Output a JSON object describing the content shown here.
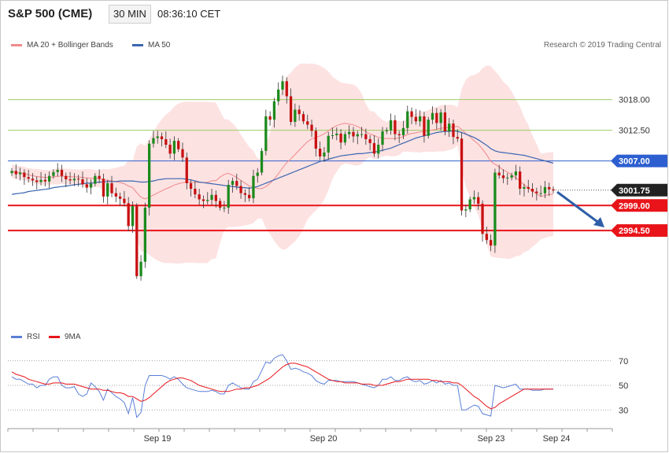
{
  "header": {
    "instrument": "S&P 500 (CME)",
    "timeframe": "30 MIN",
    "time": "08:36:10 CET"
  },
  "legend": {
    "ma20_label": "MA 20 + Bollinger Bands",
    "ma50_label": "MA 50",
    "rsi_label": "RSI",
    "rsi_ma_label": "9MA"
  },
  "credit": "Research © 2019 Trading Central",
  "colors": {
    "bull": "#1c8a1c",
    "bear": "#c81010",
    "band": "#fde2e2",
    "ma20": "#f08a8a",
    "ma50": "#3a66b0",
    "support": "#e8141a",
    "resistance_line": "#9ccc65",
    "pivot_line": "#2d5fd0",
    "last_price_tag": "#222222",
    "arrow": "#2e5ea8"
  },
  "chart_data": [
    {
      "type": "candlestick",
      "y_axis_range": [
        2978,
        3026
      ],
      "x_labels": [
        "Sep 19",
        "Sep 20",
        "Sep 23",
        "Sep 24"
      ],
      "levels": [
        {
          "value": 3018.0,
          "label": "3018.00",
          "kind": "resistance"
        },
        {
          "value": 3012.5,
          "label": "3012.50",
          "kind": "resistance"
        },
        {
          "value": 3007.0,
          "label": "3007.00",
          "kind": "pivot"
        },
        {
          "value": 3001.75,
          "label": "3001.75",
          "kind": "last"
        },
        {
          "value": 2999.0,
          "label": "2999.00",
          "kind": "support"
        },
        {
          "value": 2994.5,
          "label": "2994.50",
          "kind": "support"
        }
      ],
      "close": [
        3005.2,
        3004.6,
        3004.9,
        3004.1,
        3003.8,
        3003.5,
        3003.2,
        3003.6,
        3003.3,
        3004.3,
        3005.0,
        3005.4,
        3004.3,
        3003.7,
        3003.5,
        3003.8,
        3003.7,
        3002.8,
        3002.2,
        3002.9,
        3004.3,
        3003.8,
        3000.6,
        3003.0,
        3001.2,
        3000.6,
        3000.2,
        2999.4,
        2995.3,
        2998.9,
        2986.3,
        2988.9,
        2998.6,
        3010.1,
        3011.1,
        3011.4,
        3010.9,
        3009.9,
        3008.3,
        3010.6,
        3009.1,
        3007.6,
        3003.0,
        3002.0,
        3001.0,
        3000.1,
        2999.8,
        3000.0,
        3000.9,
        2999.8,
        2998.6,
        2998.6,
        3002.7,
        3003.4,
        3002.5,
        3001.2,
        3000.9,
        3000.3,
        3004.3,
        3004.9,
        3008.8,
        3015.0,
        3014.4,
        3017.7,
        3019.8,
        3021.3,
        3018.6,
        3014.0,
        3016.2,
        3015.4,
        3014.1,
        3013.5,
        3012.4,
        3009.2,
        3007.8,
        3008.5,
        3011.5,
        3011.6,
        3011.9,
        3010.3,
        3011.8,
        3012.2,
        3011.4,
        3011.8,
        3011.8,
        3010.9,
        3010.2,
        3008.3,
        3009.9,
        3012.3,
        3012.5,
        3014.3,
        3011.8,
        3011.6,
        3012.9,
        3015.9,
        3014.9,
        3014.1,
        3015.0,
        3011.5,
        3014.4,
        3015.6,
        3013.8,
        3015.7,
        3012.3,
        3013.7,
        3011.3,
        3011.0,
        2998.1,
        2998.3,
        3000.1,
        3000.5,
        2999.3,
        2993.9,
        2992.8,
        2991.8,
        3004.9,
        3004.4,
        3003.9,
        3004.0,
        3004.4,
        3005.1,
        3002.0,
        3002.3,
        3002.0,
        3001.5,
        3001.2,
        3001.2,
        3002.3,
        3001.9,
        3001.7
      ],
      "ma50": [
        3001.0,
        3001.1,
        3001.2,
        3001.3,
        3001.5,
        3001.6,
        3001.7,
        3001.8,
        3001.9,
        3002.0,
        3002.2,
        3002.3,
        3002.4,
        3002.5,
        3002.6,
        3002.7,
        3002.8,
        3002.9,
        3003.0,
        3003.0,
        3003.1,
        3003.2,
        3003.2,
        3003.3,
        3003.3,
        3003.3,
        3003.4,
        3003.4,
        3003.4,
        3003.4,
        3003.3,
        3003.2,
        3003.2,
        3003.3,
        3003.4,
        3003.6,
        3003.7,
        3003.8,
        3003.8,
        3003.8,
        3003.8,
        3003.8,
        3003.7,
        3003.6,
        3003.4,
        3003.2,
        3003.1,
        3003.0,
        3002.9,
        3002.8,
        3002.7,
        3002.6,
        3002.5,
        3002.4,
        3002.3,
        3002.2,
        3002.2,
        3002.1,
        3002.2,
        3002.4,
        3002.7,
        3003.0,
        3003.3,
        3003.6,
        3003.9,
        3004.2,
        3004.5,
        3004.8,
        3005.1,
        3005.4,
        3005.7,
        3006.0,
        3006.3,
        3006.6,
        3006.9,
        3007.1,
        3007.3,
        3007.5,
        3007.7,
        3007.9,
        3008.0,
        3008.1,
        3008.2,
        3008.3,
        3008.3,
        3008.4,
        3008.5,
        3008.6,
        3008.7,
        3008.9,
        3009.1,
        3009.3,
        3009.6,
        3009.9,
        3010.2,
        3010.5,
        3010.8,
        3011.1,
        3011.3,
        3011.5,
        3011.7,
        3011.9,
        3012.1,
        3012.2,
        3012.3,
        3012.3,
        3012.4,
        3012.3,
        3012.1,
        3011.8,
        3011.5,
        3011.2,
        3010.8,
        3010.3,
        3009.8,
        3009.2,
        3008.8,
        3008.6,
        3008.5,
        3008.4,
        3008.3,
        3008.2,
        3008.1,
        3008.0,
        3007.8,
        3007.6,
        3007.4,
        3007.2,
        3007.0,
        3006.8,
        3006.6
      ]
    },
    {
      "type": "line",
      "name": "RSI",
      "y_ticks": [
        70,
        50,
        30
      ],
      "y_axis_range": [
        18,
        82
      ],
      "rsi": [
        57,
        55,
        55,
        53,
        51,
        51,
        48,
        50,
        50,
        55,
        57,
        57,
        50,
        48,
        48,
        49,
        43,
        41,
        43,
        52,
        49,
        45,
        38,
        47,
        44,
        41,
        39,
        36,
        27,
        40,
        24,
        28,
        50,
        58,
        58,
        58,
        58,
        57,
        55,
        57,
        55,
        51,
        48,
        47,
        46,
        45,
        45,
        45,
        46,
        45,
        43,
        43,
        50,
        52,
        50,
        48,
        47,
        47,
        53,
        55,
        62,
        69,
        68,
        72,
        74,
        75,
        70,
        63,
        64,
        63,
        61,
        60,
        58,
        54,
        52,
        51,
        54,
        54,
        54,
        53,
        53,
        53,
        53,
        52,
        51,
        50,
        49,
        48,
        50,
        55,
        55,
        57,
        54,
        54,
        56,
        57,
        54,
        53,
        54,
        51,
        52,
        54,
        52,
        54,
        51,
        52,
        50,
        50,
        30,
        30,
        32,
        34,
        33,
        27,
        26,
        25,
        50,
        49,
        48,
        49,
        50,
        51,
        47,
        47,
        47,
        46,
        46,
        46,
        47,
        47,
        47
      ],
      "ma9": [
        61,
        59,
        58,
        57,
        55,
        54,
        53,
        52,
        51,
        51,
        52,
        52,
        52,
        51,
        51,
        51,
        50,
        49,
        48,
        47,
        47,
        47,
        46,
        46,
        45,
        44,
        44,
        43,
        41,
        41,
        39,
        37,
        38,
        40,
        43,
        46,
        49,
        52,
        54,
        55,
        56,
        56,
        55,
        54,
        52,
        50,
        49,
        48,
        47,
        46,
        45,
        45,
        45,
        46,
        47,
        47,
        48,
        48,
        49,
        50,
        52,
        54,
        56,
        59,
        62,
        65,
        67,
        68,
        68,
        67,
        66,
        65,
        63,
        61,
        59,
        57,
        55,
        54,
        53,
        53,
        52,
        52,
        52,
        52,
        51,
        51,
        51,
        50,
        50,
        50,
        51,
        52,
        53,
        53,
        54,
        55,
        55,
        55,
        55,
        55,
        55,
        54,
        54,
        53,
        53,
        53,
        52,
        52,
        50,
        47,
        44,
        41,
        39,
        36,
        33,
        31,
        32,
        35,
        37,
        39,
        41,
        43,
        45,
        47,
        47,
        47,
        47,
        47,
        47,
        47,
        47
      ]
    }
  ]
}
